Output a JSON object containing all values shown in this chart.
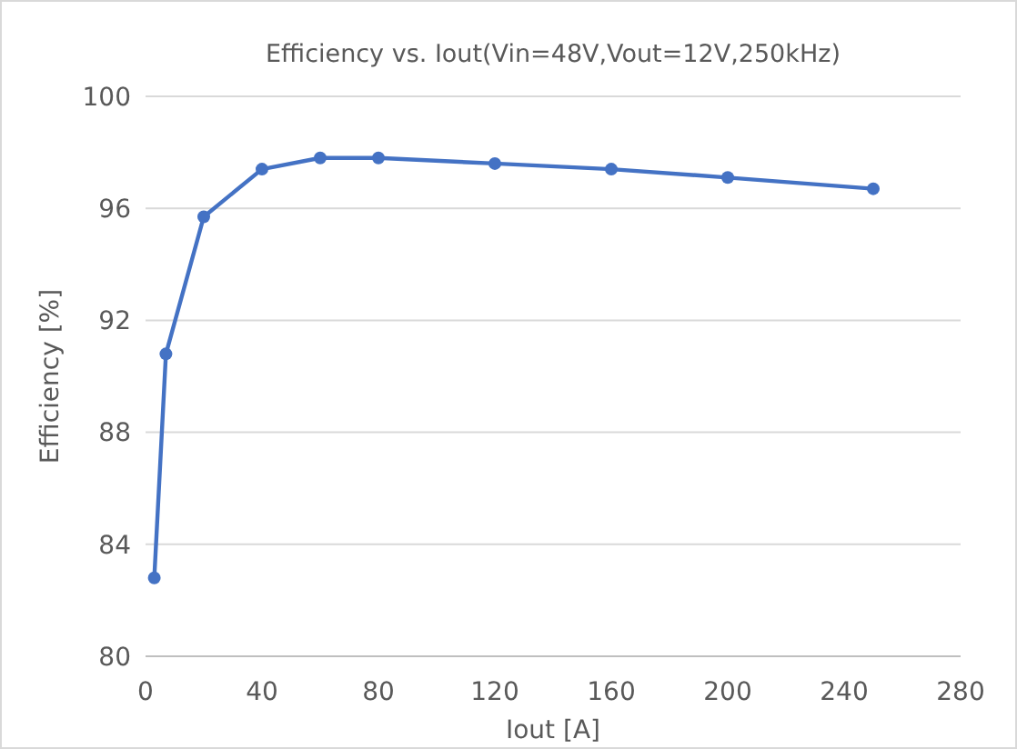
{
  "chart_data": {
    "type": "line",
    "title": "Efficiency  vs.  Iout(Vin=48V,Vout=12V,250kHz)",
    "xlabel": "Iout [A]",
    "ylabel": "Efficiency [%]",
    "x": [
      3,
      7,
      20,
      40,
      60,
      80,
      120,
      160,
      200,
      250
    ],
    "series": [
      {
        "color": "#4472c4",
        "values": [
          82.8,
          90.8,
          95.7,
          97.4,
          97.8,
          97.8,
          97.6,
          97.4,
          97.1,
          96.7
        ]
      }
    ],
    "xlim": [
      0,
      280
    ],
    "xticks": [
      0,
      40,
      80,
      120,
      160,
      200,
      240,
      280
    ],
    "ylim": [
      80,
      100
    ],
    "yticks": [
      80,
      84,
      88,
      92,
      96,
      100
    ],
    "grid": "y",
    "marker": "circle",
    "line_style": "solid"
  }
}
